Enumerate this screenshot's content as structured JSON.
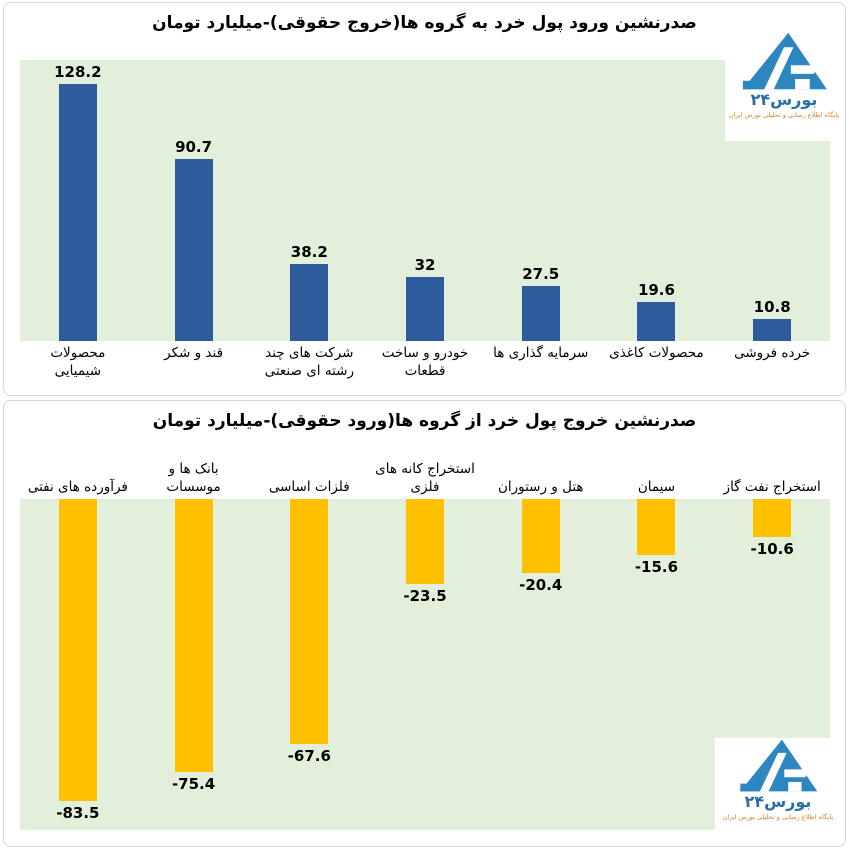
{
  "chart_data": [
    {
      "type": "bar",
      "title": "صدرنشین ورود پول خرد به گروه ها(خروج حقوقی)-میلیارد تومان",
      "direction": "up",
      "bar_color": "#2e5b9b",
      "plot_bg": "#e2efda",
      "categories": [
        "محصولات شیمیایی",
        "قند و شکر",
        "شرکت های چند رشته ای صنعتی",
        "خودرو و ساخت قطعات",
        "سرمایه گذاری ها",
        "محصولات کاغذی",
        "خرده فروشی"
      ],
      "values": [
        128.2,
        90.7,
        38.2,
        32,
        27.5,
        19.6,
        10.8
      ],
      "value_labels": [
        "128.2",
        "90.7",
        "38.2",
        "32",
        "27.5",
        "19.6",
        "10.8"
      ],
      "xlabel": "",
      "ylabel": "",
      "ylim": [
        0,
        140
      ],
      "grid": false,
      "legend": false
    },
    {
      "type": "bar",
      "title": "صدرنشین خروج پول خرد از گروه ها(ورود حقوقی)-میلیارد تومان",
      "direction": "down",
      "bar_color": "#ffc000",
      "plot_bg": "#e2efda",
      "categories": [
        "فرآورده های نفتی",
        "بانک ها و موسسات",
        "فلزات اساسی",
        "استخراج کانه های فلزی",
        "هتل و رستوران",
        "سیمان",
        "استخراج نفت گاز"
      ],
      "values": [
        -83.5,
        -75.4,
        -67.6,
        -23.5,
        -20.4,
        -15.6,
        -10.6
      ],
      "value_labels": [
        "-83.5",
        "-75.4",
        "-67.6",
        "-23.5",
        "-20.4",
        "-15.6",
        "-10.6"
      ],
      "xlabel": "",
      "ylabel": "",
      "ylim": [
        -91.5,
        0
      ],
      "grid": false,
      "legend": false
    }
  ],
  "logo": {
    "name": "بورس۲۴",
    "tagline": "پایگاه اطلاع رسانی و تحلیلی بورس ایران",
    "triangle_color": "#2e86c1",
    "name_color": "#2b6ea8",
    "tagline_color": "#e0812f"
  }
}
